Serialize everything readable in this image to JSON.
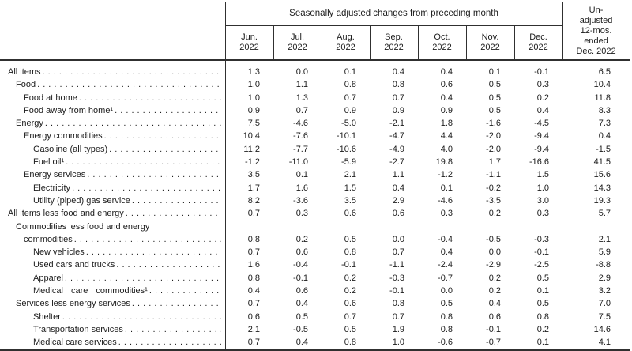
{
  "table": {
    "header": {
      "adjusted_title": "Seasonally adjusted changes from preceding month",
      "unadjusted_title": "Un-\nadjusted\n12-mos.\nended\nDec. 2022",
      "columns": [
        {
          "month": "Jun.",
          "year": "2022"
        },
        {
          "month": "Jul.",
          "year": "2022"
        },
        {
          "month": "Aug.",
          "year": "2022"
        },
        {
          "month": "Sep.",
          "year": "2022"
        },
        {
          "month": "Oct.",
          "year": "2022"
        },
        {
          "month": "Nov.",
          "year": "2022"
        },
        {
          "month": "Dec.",
          "year": "2022"
        }
      ]
    },
    "rows": [
      {
        "label": "All items",
        "level": 0,
        "values": [
          "1.3",
          "0.0",
          "0.1",
          "0.4",
          "0.4",
          "0.1",
          "-0.1",
          "6.5"
        ]
      },
      {
        "label": "Food",
        "level": 1,
        "values": [
          "1.0",
          "1.1",
          "0.8",
          "0.8",
          "0.6",
          "0.5",
          "0.3",
          "10.4"
        ]
      },
      {
        "label": "Food at home",
        "level": 2,
        "values": [
          "1.0",
          "1.3",
          "0.7",
          "0.7",
          "0.4",
          "0.5",
          "0.2",
          "11.8"
        ]
      },
      {
        "label": "Food away from home¹",
        "level": 2,
        "values": [
          "0.9",
          "0.7",
          "0.9",
          "0.9",
          "0.9",
          "0.5",
          "0.4",
          "8.3"
        ]
      },
      {
        "label": "Energy",
        "level": 1,
        "values": [
          "7.5",
          "-4.6",
          "-5.0",
          "-2.1",
          "1.8",
          "-1.6",
          "-4.5",
          "7.3"
        ]
      },
      {
        "label": "Energy commodities",
        "level": 2,
        "values": [
          "10.4",
          "-7.6",
          "-10.1",
          "-4.7",
          "4.4",
          "-2.0",
          "-9.4",
          "0.4"
        ]
      },
      {
        "label": "Gasoline (all types)",
        "level": 3,
        "values": [
          "11.2",
          "-7.7",
          "-10.6",
          "-4.9",
          "4.0",
          "-2.0",
          "-9.4",
          "-1.5"
        ]
      },
      {
        "label": "Fuel oil¹",
        "level": 3,
        "values": [
          "-1.2",
          "-11.0",
          "-5.9",
          "-2.7",
          "19.8",
          "1.7",
          "-16.6",
          "41.5"
        ]
      },
      {
        "label": "Energy services",
        "level": 2,
        "values": [
          "3.5",
          "0.1",
          "2.1",
          "1.1",
          "-1.2",
          "-1.1",
          "1.5",
          "15.6"
        ]
      },
      {
        "label": "Electricity",
        "level": 3,
        "values": [
          "1.7",
          "1.6",
          "1.5",
          "0.4",
          "0.1",
          "-0.2",
          "1.0",
          "14.3"
        ]
      },
      {
        "label": "Utility (piped) gas service",
        "level": 3,
        "values": [
          "8.2",
          "-3.6",
          "3.5",
          "2.9",
          "-4.6",
          "-3.5",
          "3.0",
          "19.3"
        ]
      },
      {
        "label": "All items less food and energy",
        "level": 0,
        "values": [
          "0.7",
          "0.3",
          "0.6",
          "0.6",
          "0.3",
          "0.2",
          "0.3",
          "5.7"
        ]
      },
      {
        "label": "Commodities less food and energy",
        "label2": "commodities",
        "level": 1,
        "values": [
          "0.8",
          "0.2",
          "0.5",
          "0.0",
          "-0.4",
          "-0.5",
          "-0.3",
          "2.1"
        ]
      },
      {
        "label": "New vehicles",
        "level": 3,
        "values": [
          "0.7",
          "0.6",
          "0.8",
          "0.7",
          "0.4",
          "0.0",
          "-0.1",
          "5.9"
        ]
      },
      {
        "label": "Used cars and trucks",
        "level": 3,
        "values": [
          "1.6",
          "-0.4",
          "-0.1",
          "-1.1",
          "-2.4",
          "-2.9",
          "-2.5",
          "-8.8"
        ]
      },
      {
        "label": "Apparel",
        "level": 3,
        "values": [
          "0.8",
          "-0.1",
          "0.2",
          "-0.3",
          "-0.7",
          "0.2",
          "0.5",
          "2.9"
        ]
      },
      {
        "label": "Medical care commodities¹",
        "level": 3,
        "wide": true,
        "values": [
          "0.4",
          "0.6",
          "0.2",
          "-0.1",
          "0.0",
          "0.2",
          "0.1",
          "3.2"
        ]
      },
      {
        "label": "Services less energy services",
        "level": 1,
        "values": [
          "0.7",
          "0.4",
          "0.6",
          "0.8",
          "0.5",
          "0.4",
          "0.5",
          "7.0"
        ]
      },
      {
        "label": "Shelter",
        "level": 3,
        "values": [
          "0.6",
          "0.5",
          "0.7",
          "0.7",
          "0.8",
          "0.6",
          "0.8",
          "7.5"
        ]
      },
      {
        "label": "Transportation services",
        "level": 3,
        "values": [
          "2.1",
          "-0.5",
          "0.5",
          "1.9",
          "0.8",
          "-0.1",
          "0.2",
          "14.6"
        ]
      },
      {
        "label": "Medical care services",
        "level": 3,
        "values": [
          "0.7",
          "0.4",
          "0.8",
          "1.0",
          "-0.6",
          "-0.7",
          "0.1",
          "4.1"
        ]
      }
    ],
    "colors": {
      "background": "#ffffff",
      "text": "#1c1c1c",
      "border_dark": "#303030",
      "border_light": "#8a8a8a"
    }
  }
}
